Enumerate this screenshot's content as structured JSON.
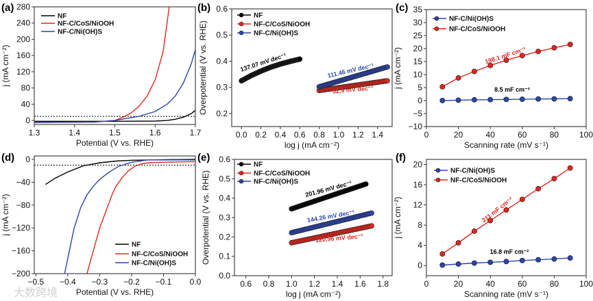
{
  "watermark": "大数跨境",
  "colors": {
    "NF": "#000000",
    "NF-C/CoS/NiOOH": "#e3261d",
    "NF-C/Ni(OH)S": "#2b45ad"
  },
  "chart_data": [
    {
      "panel": "(a)",
      "type": "line",
      "xlabel": "Potential (V vs. RHE)",
      "ylabel": "j (mA cm⁻²)",
      "xlim": [
        1.3,
        1.7
      ],
      "ylim": [
        -10,
        280
      ],
      "xticks": [
        1.3,
        1.4,
        1.5,
        1.6,
        1.7
      ],
      "xtick_labels": [
        "1.3",
        "1.4",
        "1.5",
        "1.6",
        "1.7"
      ],
      "yticks": [
        0,
        40,
        80,
        120,
        160,
        200,
        240,
        280
      ],
      "ytick_labels": [
        "0",
        "40",
        "80",
        "120",
        "160",
        "200",
        "240",
        "280"
      ],
      "reference_line_y": 10,
      "legend": "top-left",
      "series": [
        {
          "name": "NF",
          "x": [
            1.3,
            1.5,
            1.6,
            1.63,
            1.65,
            1.67,
            1.69,
            1.7
          ],
          "y": [
            -2,
            -2,
            -1.5,
            0,
            3,
            8,
            17,
            25
          ]
        },
        {
          "name": "NF-C/CoS/NiOOH",
          "x": [
            1.3,
            1.45,
            1.5,
            1.52,
            1.54,
            1.56,
            1.58,
            1.6,
            1.62,
            1.635
          ],
          "y": [
            -5,
            -4,
            0,
            8,
            18,
            35,
            60,
            100,
            170,
            280
          ]
        },
        {
          "name": "NF-C/Ni(OH)S",
          "x": [
            1.3,
            1.45,
            1.5,
            1.53,
            1.56,
            1.6,
            1.63,
            1.65,
            1.67,
            1.69,
            1.7
          ],
          "y": [
            -5,
            -4,
            0,
            5,
            10,
            22,
            40,
            60,
            92,
            140,
            175
          ]
        }
      ]
    },
    {
      "panel": "(b)",
      "type": "scatter",
      "xlabel": "log j (mA cm⁻²)",
      "ylabel": "Overpotential (V vs. RHE)",
      "xlim": [
        -0.1,
        1.55
      ],
      "ylim": [
        0.15,
        0.6
      ],
      "xticks": [
        0,
        0.2,
        0.4,
        0.6,
        0.8,
        1.0,
        1.2,
        1.4
      ],
      "xtick_labels": [
        "0.0",
        "0.2",
        "0.4",
        "0.6",
        "0.8",
        "1.0",
        "1.2",
        "1.4"
      ],
      "yticks": [
        0.2,
        0.3,
        0.4,
        0.5,
        0.6
      ],
      "ytick_labels": [
        "0.2",
        "0.3",
        "0.4",
        "0.5",
        "0.6"
      ],
      "legend": "top-left",
      "series": [
        {
          "name": "NF",
          "x": [
            0,
            0.1,
            0.2,
            0.3,
            0.4,
            0.5,
            0.6
          ],
          "y": [
            0.325,
            0.345,
            0.362,
            0.377,
            0.389,
            0.399,
            0.408
          ]
        },
        {
          "name": "NF-C/CoS/NiOOH",
          "x": [
            0.8,
            1.5
          ],
          "y": [
            0.288,
            0.325
          ]
        },
        {
          "name": "NF-C/Ni(OH)S",
          "x": [
            0.8,
            1.5
          ],
          "y": [
            0.302,
            0.378
          ]
        }
      ],
      "annotations": [
        "137.07 mV dec⁻¹",
        "111.46 mV dec⁻¹",
        "52.9 mV dec⁻¹"
      ]
    },
    {
      "panel": "(c)",
      "type": "line",
      "xlabel": "Scanning rate (mV s⁻¹)",
      "ylabel": "j (mA cm⁻²)",
      "xlim": [
        0,
        100
      ],
      "ylim": [
        -10,
        35
      ],
      "xticks": [
        0,
        20,
        40,
        60,
        80,
        100
      ],
      "xtick_labels": [
        "0",
        "20",
        "40",
        "60",
        "80",
        "100"
      ],
      "yticks": [
        -10,
        -5,
        0,
        5,
        10,
        15,
        20,
        25,
        30,
        35
      ],
      "ytick_labels": [
        "−10",
        "−5",
        "0",
        "5",
        "10",
        "15",
        "20",
        "25",
        "30",
        "35"
      ],
      "legend": "top-left",
      "series": [
        {
          "name": "NF-C/Ni(OH)S",
          "x": [
            10,
            20,
            30,
            40,
            50,
            60,
            70,
            80,
            90
          ],
          "y": [
            0.0,
            0.15,
            0.3,
            0.35,
            0.45,
            0.5,
            0.6,
            0.65,
            0.75
          ]
        },
        {
          "name": "NF-C/CoS/NiOOH",
          "x": [
            10,
            20,
            30,
            40,
            50,
            60,
            70,
            80,
            90
          ],
          "y": [
            5.3,
            8.7,
            11.2,
            13.5,
            15.5,
            17.3,
            18.9,
            20.3,
            21.6
          ]
        }
      ],
      "annotations": [
        "198.1 mF cm⁻²",
        "8.5 mF cm⁻²"
      ]
    },
    {
      "panel": "(d)",
      "type": "line",
      "xlabel": "Potential (V vs. RHE)",
      "ylabel": "j (mA cm⁻²)",
      "xlim": [
        -0.505,
        0
      ],
      "ylim": [
        -200,
        6
      ],
      "xticks": [
        -0.5,
        -0.4,
        -0.3,
        -0.2,
        -0.1,
        0
      ],
      "xtick_labels": [
        "−0.5",
        "−0.4",
        "−0.3",
        "−0.2",
        "−0.1",
        "0.0"
      ],
      "yticks": [
        0,
        -40,
        -80,
        -120,
        -160,
        -200
      ],
      "ytick_labels": [
        "0",
        "−40",
        "−80",
        "−120",
        "−160",
        "−200"
      ],
      "reference_line_y": -10,
      "legend": "bottom-right",
      "series": [
        {
          "name": "NF",
          "x": [
            -0.47,
            -0.44,
            -0.4,
            -0.35,
            -0.3,
            -0.25,
            -0.2,
            -0.1,
            0
          ],
          "y": [
            -44,
            -33,
            -22,
            -11,
            -6,
            -3,
            -1.5,
            -0.5,
            0
          ]
        },
        {
          "name": "NF-C/CoS/NiOOH",
          "x": [
            -0.34,
            -0.32,
            -0.3,
            -0.28,
            -0.26,
            -0.25,
            -0.23,
            -0.21,
            -0.19,
            -0.17,
            -0.15,
            -0.1,
            0
          ],
          "y": [
            -200,
            -160,
            -120,
            -90,
            -60,
            -48,
            -32,
            -20,
            -12,
            -8,
            -6,
            -5,
            -4
          ]
        },
        {
          "name": "NF-C/Ni(OH)S",
          "x": [
            -0.41,
            -0.395,
            -0.38,
            -0.36,
            -0.34,
            -0.32,
            -0.3,
            -0.27,
            -0.24,
            -0.2,
            -0.15,
            -0.1,
            0
          ],
          "y": [
            -200,
            -160,
            -120,
            -85,
            -62,
            -47,
            -35,
            -22,
            -12,
            -5,
            -1,
            -1,
            -1
          ]
        }
      ]
    },
    {
      "panel": "(e)",
      "type": "scatter",
      "xlabel": "log j (mA cm⁻²)",
      "ylabel": "Overpotential (V vs. RHE)",
      "xlim": [
        0.5,
        1.88
      ],
      "ylim": [
        0,
        0.6
      ],
      "xticks": [
        0.6,
        0.8,
        1.0,
        1.2,
        1.4,
        1.6,
        1.8
      ],
      "xtick_labels": [
        "0.6",
        "0.8",
        "1.0",
        "1.2",
        "1.4",
        "1.6",
        "1.8"
      ],
      "yticks": [
        0,
        0.1,
        0.2,
        0.3,
        0.4,
        0.5,
        0.6
      ],
      "ytick_labels": [
        "0.0",
        "0.1",
        "0.2",
        "0.3",
        "0.4",
        "0.5",
        "0.6"
      ],
      "legend": "top-left",
      "series": [
        {
          "name": "NF",
          "x": [
            1.0,
            1.65
          ],
          "y": [
            0.345,
            0.473
          ]
        },
        {
          "name": "NF-C/CoS/NiOOH",
          "x": [
            1.0,
            1.7
          ],
          "y": [
            0.17,
            0.257
          ]
        },
        {
          "name": "NF-C/Ni(OH)S",
          "x": [
            1.0,
            1.7
          ],
          "y": [
            0.222,
            0.323
          ]
        }
      ],
      "annotations": [
        "201.96 mV dec⁻¹",
        "144.26 mV dec⁻¹",
        "120.96 mV dec⁻¹"
      ]
    },
    {
      "panel": "(f)",
      "type": "line",
      "xlabel": "Scanning rate (mV s⁻¹)",
      "ylabel": "j (mA cm⁻²)",
      "xlim": [
        0,
        100
      ],
      "ylim": [
        -2,
        21
      ],
      "xticks": [
        0,
        20,
        40,
        60,
        80,
        100
      ],
      "xtick_labels": [
        "0",
        "20",
        "40",
        "60",
        "80",
        "100"
      ],
      "yticks": [
        0,
        4,
        8,
        12,
        16,
        20
      ],
      "ytick_labels": [
        "0",
        "4",
        "8",
        "12",
        "16",
        "20"
      ],
      "legend": "top-left",
      "series": [
        {
          "name": "NF-C/Ni(OH)S",
          "x": [
            10,
            20,
            30,
            40,
            50,
            60,
            70,
            80,
            90
          ],
          "y": [
            0.1,
            0.3,
            0.5,
            0.65,
            0.8,
            1.0,
            1.15,
            1.3,
            1.5
          ]
        },
        {
          "name": "NF-C/CoS/NiOOH",
          "x": [
            10,
            20,
            30,
            40,
            50,
            60,
            70,
            80,
            90
          ],
          "y": [
            2.3,
            4.5,
            6.8,
            8.9,
            11.0,
            13.1,
            15.2,
            17.2,
            19.3
          ]
        }
      ],
      "annotations": [
        "211 mF cm⁻²",
        "16.8 mF cm⁻²"
      ]
    }
  ]
}
